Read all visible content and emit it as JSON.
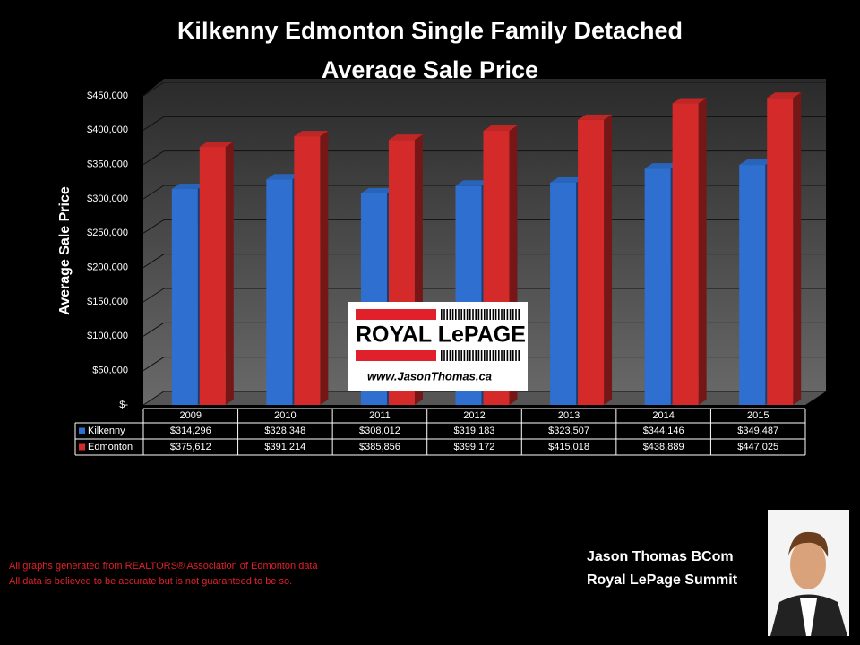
{
  "chart_data": {
    "type": "bar",
    "title": "Kilkenny Edmonton Single Family Detached",
    "subtitle": "Average Sale Price",
    "y_label": "Average Sale Price",
    "categories": [
      "2009",
      "2010",
      "2011",
      "2012",
      "2013",
      "2014",
      "2015"
    ],
    "series": [
      {
        "name": "Kilkenny",
        "color": "#2e6fd0",
        "values": [
          314296,
          328348,
          308012,
          319183,
          323507,
          344146,
          349487
        ],
        "value_labels": [
          "$314,296",
          "$328,348",
          "$308,012",
          "$319,183",
          "$323,507",
          "$344,146",
          "$349,487"
        ]
      },
      {
        "name": "Edmonton",
        "color": "#d42a2a",
        "values": [
          375612,
          391214,
          385856,
          399172,
          415018,
          438889,
          447025
        ],
        "value_labels": [
          "$375,612",
          "$391,214",
          "$385,856",
          "$399,172",
          "$415,018",
          "$438,889",
          "$447,025"
        ]
      }
    ],
    "ylim": [
      0,
      450000
    ],
    "yticks": [
      {
        "value": 0,
        "label": "$-"
      },
      {
        "value": 50000,
        "label": "$50,000"
      },
      {
        "value": 100000,
        "label": "$100,000"
      },
      {
        "value": 150000,
        "label": "$150,000"
      },
      {
        "value": 200000,
        "label": "$200,000"
      },
      {
        "value": 250000,
        "label": "$250,000"
      },
      {
        "value": 300000,
        "label": "$300,000"
      },
      {
        "value": 350000,
        "label": "$350,000"
      },
      {
        "value": 400000,
        "label": "$400,000"
      },
      {
        "value": 450000,
        "label": "$450,000"
      }
    ],
    "grid": true
  },
  "logo": {
    "brand": "ROYAL LePAGE",
    "url": "www.JasonThomas.ca"
  },
  "footer": {
    "notes": [
      "All graphs generated from REALTORS® Association of Edmonton data",
      "All data is believed to be accurate but is not guaranteed to be so."
    ],
    "name": "Jason Thomas BCom",
    "company": "Royal LePage Summit"
  }
}
